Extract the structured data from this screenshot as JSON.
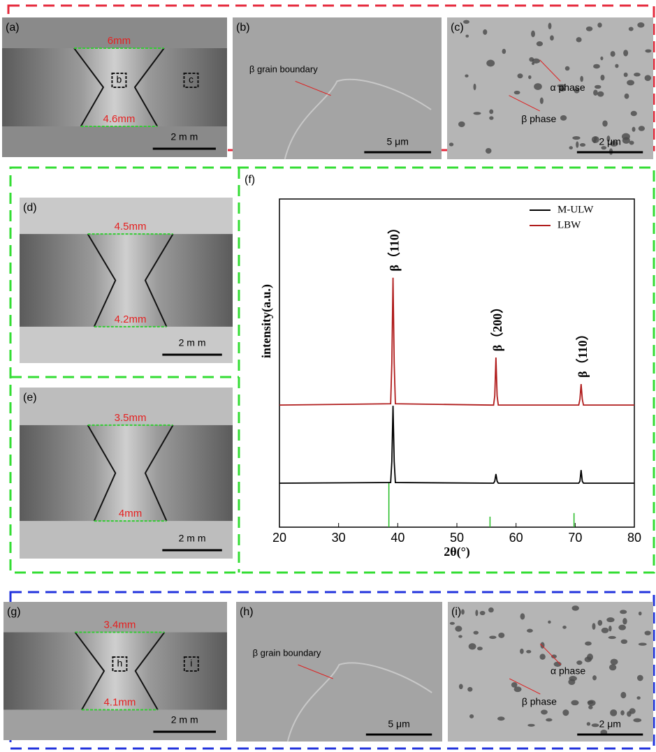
{
  "panels": [
    {
      "label": "(a)",
      "top_width": "6mm",
      "bottom_width": "4.6mm",
      "boxes": [
        "b",
        "c"
      ],
      "scale_bar": "2 m m"
    },
    {
      "label": "(b)",
      "annotations": [
        "β grain boundary"
      ],
      "scale_bar": "5 μm"
    },
    {
      "label": "(c)",
      "annotations": [
        "α phase",
        "β phase"
      ],
      "scale_bar": "2 μm"
    },
    {
      "label": "(d)",
      "top_width": "4.5mm",
      "bottom_width": "4.2mm",
      "scale_bar": "2 m m"
    },
    {
      "label": "(e)",
      "top_width": "3.5mm",
      "bottom_width": "4mm",
      "scale_bar": "2 m m"
    },
    {
      "label": "(g)",
      "top_width": "3.4mm",
      "bottom_width": "4.1mm",
      "boxes": [
        "h",
        "i"
      ],
      "scale_bar": "2 m m"
    },
    {
      "label": "(h)",
      "annotations": [
        "β grain boundary"
      ],
      "scale_bar": "5 μm"
    },
    {
      "label": "(i)",
      "annotations": [
        "α phase",
        "β phase"
      ],
      "scale_bar": "2 μm"
    }
  ],
  "chart_label": "(f)",
  "chart_data": {
    "type": "line",
    "x_label": "2θ(°)",
    "y_label": "intensity(a.u.)",
    "xlim": [
      20,
      80
    ],
    "xticks": [
      20,
      30,
      40,
      50,
      60,
      70,
      80
    ],
    "ylim": [
      0,
      100
    ],
    "x": [
      20,
      38.8,
      39.0,
      39.2,
      39.4,
      39.6,
      56.2,
      56.4,
      56.6,
      56.8,
      57.0,
      70.6,
      70.8,
      71.0,
      71.2,
      71.4,
      80
    ],
    "series": [
      {
        "name": "M-ULW",
        "color": "#000000",
        "values": [
          13.4,
          13.6,
          20,
          37,
          20,
          13.6,
          13.4,
          14,
          16.2,
          14,
          13.4,
          13.4,
          14,
          17.4,
          14,
          13.4,
          13.4
        ]
      },
      {
        "name": "LBW",
        "color": "#b01c1c",
        "values": [
          37.2,
          37.6,
          50,
          76,
          50,
          37.6,
          37.2,
          40,
          51.7,
          40,
          37.2,
          37.2,
          39,
          43.6,
          39,
          37.2,
          37.2
        ]
      }
    ],
    "reference_peaks": {
      "color": "#22bb22",
      "x": [
        38.5,
        55.6,
        69.8
      ],
      "values": [
        13.8,
        3.2,
        4.3
      ]
    },
    "annotations": [
      {
        "text": "β（110）",
        "x": 39.2
      },
      {
        "text": "β（200）",
        "x": 56.6
      },
      {
        "text": "β（110）",
        "x": 71
      }
    ],
    "legend": "top-right"
  }
}
